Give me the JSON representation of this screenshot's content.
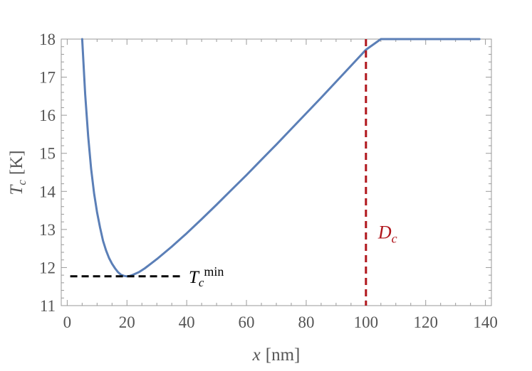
{
  "chart_data": {
    "type": "line",
    "title": "",
    "xlabel": {
      "var": "x",
      "unit": "[nm]"
    },
    "ylabel": {
      "var": "T",
      "sub": "c",
      "unit": "[K]"
    },
    "xlim": [
      -2,
      142
    ],
    "ylim": [
      11,
      18
    ],
    "xticks": [
      "0",
      "20",
      "40",
      "60",
      "80",
      "100",
      "120",
      "140"
    ],
    "yticks": [
      "11",
      "12",
      "13",
      "14",
      "15",
      "16",
      "17",
      "18"
    ],
    "grid": false,
    "series": [
      {
        "color": "#5b7fb7",
        "x": [
          5,
          6,
          7,
          8,
          9,
          10,
          11,
          12,
          13,
          14,
          15,
          16,
          17,
          18,
          19,
          20,
          21,
          22,
          24,
          26,
          28,
          30,
          35,
          40,
          45,
          50,
          55,
          60,
          65,
          70,
          75,
          80,
          85,
          90,
          95,
          100,
          105,
          110,
          115,
          120,
          125,
          130,
          135,
          138
        ],
        "y": [
          18.0,
          16.55,
          15.45,
          14.6,
          13.95,
          13.45,
          13.05,
          12.7,
          12.45,
          12.25,
          12.1,
          11.98,
          11.88,
          11.81,
          11.78,
          11.77,
          11.78,
          11.81,
          11.88,
          11.98,
          12.1,
          12.22,
          12.55,
          12.9,
          13.27,
          13.65,
          14.04,
          14.43,
          14.83,
          15.23,
          15.64,
          16.05,
          16.46,
          16.88,
          17.3,
          17.72,
          18.0,
          18.0,
          18.0,
          18.0,
          18.0,
          18.0,
          18.0,
          18.0
        ]
      }
    ],
    "annotations": [
      {
        "kind": "hline",
        "label_main": "T",
        "label_sub": "c",
        "label_sup": "min",
        "y": 11.77,
        "x_from": 1,
        "x_to": 39,
        "color": "#000000",
        "dashed": true
      },
      {
        "kind": "vline",
        "label_main": "D",
        "label_sub": "c",
        "x": 100,
        "y_from": 11,
        "y_to": 18,
        "color": "#b0151b",
        "dashed": true
      }
    ]
  }
}
